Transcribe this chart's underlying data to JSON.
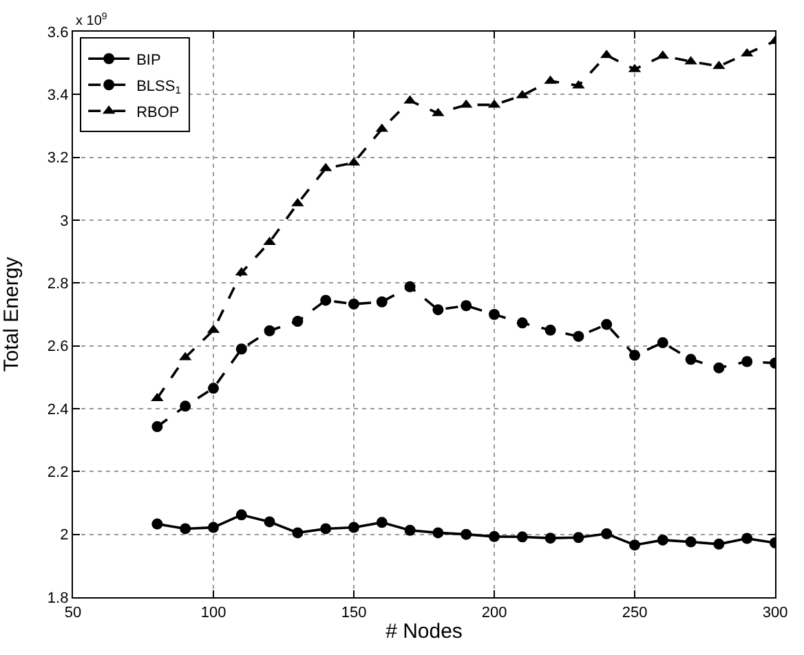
{
  "chart_data": {
    "type": "line",
    "xlabel": "# Nodes",
    "ylabel": "Total Energy",
    "annotations": [
      "x 10$^{9}$"
    ],
    "x": [
      80,
      90,
      100,
      110,
      120,
      130,
      140,
      150,
      160,
      170,
      180,
      190,
      200,
      210,
      220,
      230,
      240,
      250,
      260,
      270,
      280,
      290,
      300
    ],
    "xlim": [
      50,
      300
    ],
    "xticks": [
      50,
      100,
      150,
      200,
      250,
      300
    ],
    "ylim": [
      1.8,
      3.6
    ],
    "yticks": [
      1.8,
      2,
      2.2,
      2.4,
      2.6,
      2.8,
      3,
      3.2,
      3.4,
      3.6
    ],
    "grid": true,
    "legend": "top left",
    "series": [
      {
        "name": "BIP",
        "color": "#000000",
        "marker": "circle",
        "line_style": "solid",
        "values": [
          2.033,
          2.018,
          2.022,
          2.062,
          2.04,
          2.005,
          2.018,
          2.022,
          2.038,
          2.013,
          2.005,
          2.0,
          1.993,
          1.992,
          1.988,
          1.99,
          2.002,
          1.966,
          1.982,
          1.976,
          1.969,
          1.987,
          1.973
        ]
      },
      {
        "name": "BLSS$_{1}$",
        "color": "#000000",
        "marker": "circle",
        "line_style": "dashed",
        "values": [
          2.343,
          2.408,
          2.465,
          2.59,
          2.648,
          2.678,
          2.745,
          2.733,
          2.74,
          2.788,
          2.715,
          2.728,
          2.7,
          2.673,
          2.65,
          2.63,
          2.668,
          2.57,
          2.61,
          2.557,
          2.53,
          2.55,
          2.545
        ]
      },
      {
        "name": "RBOP",
        "color": "#000000",
        "marker": "triangle",
        "line_style": "dashed",
        "values": [
          2.433,
          2.563,
          2.65,
          2.833,
          2.93,
          3.053,
          3.165,
          3.183,
          3.29,
          3.38,
          3.34,
          3.367,
          3.367,
          3.397,
          3.443,
          3.428,
          3.525,
          3.48,
          3.523,
          3.505,
          3.49,
          3.53,
          3.57
        ]
      }
    ]
  }
}
